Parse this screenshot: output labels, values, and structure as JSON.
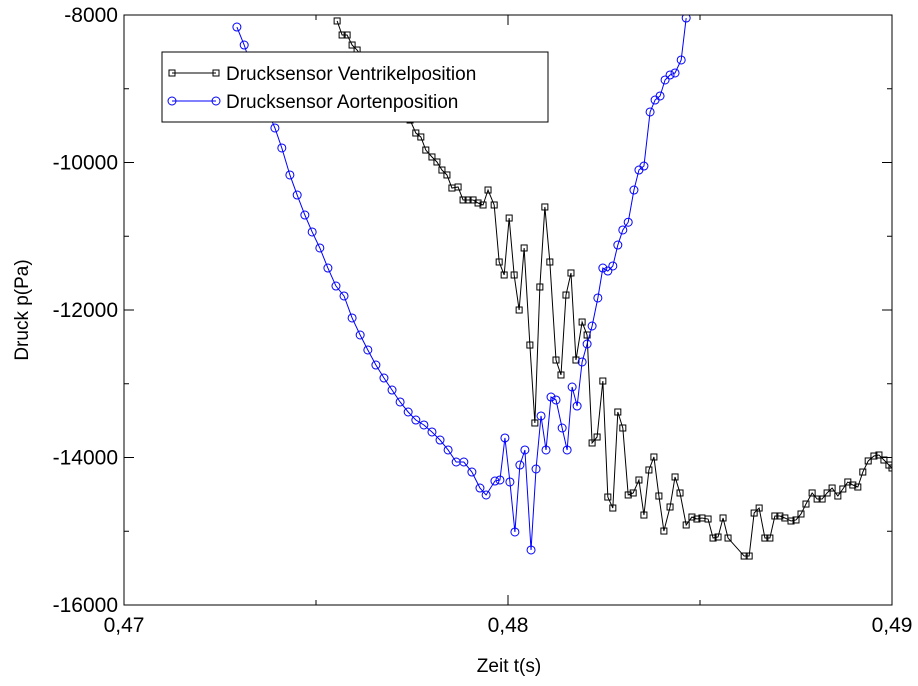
{
  "chart_data": {
    "type": "line",
    "x_label": "Zeit t(s)",
    "y_label": "Druck p(Pa)",
    "xlim": [
      0.47,
      0.49
    ],
    "xticks": [
      {
        "value": 0.47,
        "label": "0,47"
      },
      {
        "value": 0.48,
        "label": "0,48"
      },
      {
        "value": 0.49,
        "label": "0,49"
      }
    ],
    "xminorticks": [
      0.475,
      0.485
    ],
    "ylim": [
      -16000,
      -8000
    ],
    "yticks": [
      -16000,
      -14000,
      -12000,
      -10000,
      -8000
    ],
    "yminorticks": [
      -15000,
      -13000,
      -11000,
      -9000
    ],
    "grid": false,
    "legend": "upper left",
    "series": [
      {
        "name": "Drucksensor Ventrikelposition",
        "color": "#000000",
        "marker": "square",
        "x": [
          0.47555,
          0.47568,
          0.47581,
          0.47594,
          0.47607,
          0.47745,
          0.4776,
          0.47773,
          0.47786,
          0.47802,
          0.47815,
          0.47828,
          0.47841,
          0.47854,
          0.4787,
          0.47883,
          0.47896,
          0.47909,
          0.47922,
          0.47935,
          0.47948,
          0.47964,
          0.47977,
          0.4799,
          0.48003,
          0.48016,
          0.48029,
          0.48042,
          0.48057,
          0.4807,
          0.48083,
          0.48096,
          0.48109,
          0.48125,
          0.48138,
          0.48151,
          0.48164,
          0.48177,
          0.48193,
          0.48206,
          0.48219,
          0.48232,
          0.48247,
          0.4826,
          0.48273,
          0.48286,
          0.48299,
          0.48313,
          0.48326,
          0.48341,
          0.48354,
          0.48367,
          0.4838,
          0.48393,
          0.48406,
          0.48422,
          0.48435,
          0.48448,
          0.48464,
          0.48479,
          0.48492,
          0.48505,
          0.48521,
          0.48534,
          0.48547,
          0.4856,
          0.48573,
          0.48615,
          0.48628,
          0.48641,
          0.48654,
          0.48669,
          0.48682,
          0.48695,
          0.48708,
          0.48721,
          0.48737,
          0.4875,
          0.48763,
          0.48776,
          0.48792,
          0.48805,
          0.48818,
          0.48831,
          0.48844,
          0.48859,
          0.48872,
          0.48885,
          0.48898,
          0.48911,
          0.48924,
          0.48938,
          0.48953,
          0.48966,
          0.48979,
          0.48992,
          0.49
        ],
        "values": [
          -8081,
          -8271,
          -8271,
          -8407,
          -8475,
          -9424,
          -9600,
          -9654,
          -9831,
          -9925,
          -9993,
          -10102,
          -10169,
          -10346,
          -10332,
          -10508,
          -10508,
          -10508,
          -10549,
          -10576,
          -10373,
          -10576,
          -11349,
          -11525,
          -10753,
          -11525,
          -12000,
          -11159,
          -12475,
          -13532,
          -11688,
          -10603,
          -11349,
          -12678,
          -12881,
          -11797,
          -11498,
          -12678,
          -12163,
          -12339,
          -13803,
          -13722,
          -12963,
          -14536,
          -14685,
          -13383,
          -13600,
          -14508,
          -14481,
          -14305,
          -14780,
          -14169,
          -13993,
          -14522,
          -14997,
          -14671,
          -14264,
          -14481,
          -14915,
          -14807,
          -14834,
          -14820,
          -14834,
          -15092,
          -15078,
          -14820,
          -15092,
          -15336,
          -15336,
          -14753,
          -14685,
          -15092,
          -15092,
          -14793,
          -14793,
          -14820,
          -14861,
          -14847,
          -14766,
          -14631,
          -14481,
          -14563,
          -14563,
          -14481,
          -14414,
          -14522,
          -14427,
          -14332,
          -14373,
          -14400,
          -14197,
          -14047,
          -13980,
          -13966,
          -14034,
          -14102,
          -14142
        ]
      },
      {
        "name": "Drucksensor Aortenposition",
        "color": "#0000ff",
        "marker": "circle",
        "x": [
          0.47294,
          0.47313,
          0.47333,
          0.47354,
          0.47375,
          0.47393,
          0.47411,
          0.47432,
          0.47451,
          0.47471,
          0.4749,
          0.4751,
          0.47531,
          0.47552,
          0.47573,
          0.47594,
          0.47615,
          0.47635,
          0.47656,
          0.47677,
          0.47698,
          0.47719,
          0.4774,
          0.4776,
          0.47781,
          0.47802,
          0.47823,
          0.47844,
          0.47865,
          0.47885,
          0.47906,
          0.47927,
          0.47943,
          0.47966,
          0.47979,
          0.47992,
          0.48005,
          0.48018,
          0.48031,
          0.48044,
          0.4806,
          0.48073,
          0.48086,
          0.48099,
          0.48112,
          0.48125,
          0.48141,
          0.48154,
          0.48167,
          0.4818,
          0.48193,
          0.48206,
          0.48219,
          0.48234,
          0.48247,
          0.4826,
          0.48273,
          0.48286,
          0.48299,
          0.48313,
          0.48328,
          0.48341,
          0.48354,
          0.4837,
          0.48383,
          0.48396,
          0.48409,
          0.48422,
          0.48435,
          0.48451,
          0.48464
        ],
        "values": [
          -8163,
          -8407,
          -8719,
          -9044,
          -9315,
          -9532,
          -9803,
          -10169,
          -10441,
          -10712,
          -10942,
          -11159,
          -11431,
          -11675,
          -11810,
          -12108,
          -12339,
          -12542,
          -12746,
          -12922,
          -13085,
          -13247,
          -13383,
          -13492,
          -13559,
          -13654,
          -13763,
          -13898,
          -14061,
          -14061,
          -14197,
          -14414,
          -14508,
          -14319,
          -14305,
          -13735,
          -14332,
          -15010,
          -14102,
          -13898,
          -15254,
          -14156,
          -13437,
          -13898,
          -13180,
          -13220,
          -13600,
          -13898,
          -13044,
          -13302,
          -12705,
          -12461,
          -12217,
          -11837,
          -11431,
          -11472,
          -11403,
          -11119,
          -10915,
          -10810,
          -10373,
          -10102,
          -10048,
          -9315,
          -9153,
          -9098,
          -8881,
          -8813,
          -8786,
          -8610,
          -8041
        ]
      }
    ]
  }
}
